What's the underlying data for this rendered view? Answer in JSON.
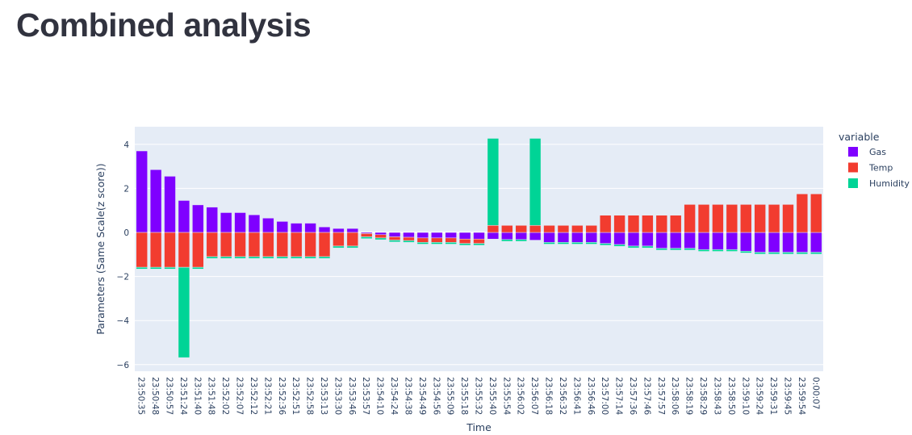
{
  "page": {
    "title": "Combined analysis"
  },
  "colors": {
    "Gas": "#7f00ff",
    "Temp": "#f23c2f",
    "Humidity": "#00d496"
  },
  "chart_data": {
    "type": "bar",
    "barmode": "relative",
    "xlabel": "Time",
    "ylabel": "Parameters (Same Scale(z score))",
    "ylim": [
      -6.3,
      4.8
    ],
    "yticks": [
      -6,
      -4,
      -2,
      0,
      2,
      4
    ],
    "legend_title": "variable",
    "legend_position": "right",
    "categories": [
      "23:50:35",
      "23:50:48",
      "23:50:57",
      "23:51:24",
      "23:51:40",
      "23:51:48",
      "23:52:02",
      "23:52:07",
      "23:52:12",
      "23:52:21",
      "23:52:36",
      "23:52:51",
      "23:52:58",
      "23:53:13",
      "23:53:30",
      "23:53:46",
      "23:53:57",
      "23:54:10",
      "23:54:24",
      "23:54:38",
      "23:54:49",
      "23:54:56",
      "23:55:09",
      "23:55:18",
      "23:55:32",
      "23:55:40",
      "23:55:54",
      "23:56:02",
      "23:56:07",
      "23:56:18",
      "23:56:32",
      "23:56:41",
      "23:56:46",
      "23:57:00",
      "23:57:14",
      "23:57:36",
      "23:57:46",
      "23:57:57",
      "23:58:06",
      "23:58:19",
      "23:58:29",
      "23:58:43",
      "23:58:50",
      "23:59:10",
      "23:59:24",
      "23:59:31",
      "23:59:45",
      "23:59:54",
      "0:00:07"
    ],
    "series": [
      {
        "name": "Gas",
        "values": [
          3.7,
          2.85,
          2.55,
          1.45,
          1.25,
          1.15,
          0.9,
          0.9,
          0.8,
          0.65,
          0.5,
          0.42,
          0.42,
          0.25,
          0.18,
          0.18,
          -0.05,
          -0.1,
          -0.2,
          -0.22,
          -0.25,
          -0.25,
          -0.25,
          -0.3,
          -0.3,
          -0.3,
          -0.32,
          -0.32,
          -0.35,
          -0.45,
          -0.45,
          -0.45,
          -0.45,
          -0.5,
          -0.55,
          -0.62,
          -0.62,
          -0.72,
          -0.72,
          -0.72,
          -0.78,
          -0.78,
          -0.78,
          -0.85,
          -0.9,
          -0.9,
          -0.9,
          -0.9,
          -0.9
        ]
      },
      {
        "name": "Temp",
        "values": [
          -1.58,
          -1.58,
          -1.58,
          -1.58,
          -1.58,
          -1.1,
          -1.1,
          -1.1,
          -1.1,
          -1.1,
          -1.1,
          -1.1,
          -1.1,
          -1.1,
          -0.62,
          -0.62,
          -0.15,
          -0.15,
          -0.15,
          -0.15,
          -0.2,
          -0.2,
          -0.2,
          -0.2,
          -0.2,
          0.32,
          0.32,
          0.32,
          0.32,
          0.32,
          0.32,
          0.32,
          0.32,
          0.78,
          0.78,
          0.78,
          0.78,
          0.78,
          0.78,
          1.27,
          1.27,
          1.27,
          1.27,
          1.27,
          1.27,
          1.27,
          1.27,
          1.75,
          1.75
        ]
      },
      {
        "name": "Humidity",
        "values": [
          -0.08,
          -0.08,
          -0.08,
          -4.1,
          -0.08,
          -0.08,
          -0.08,
          -0.08,
          -0.08,
          -0.08,
          -0.08,
          -0.08,
          -0.08,
          -0.08,
          -0.08,
          -0.08,
          -0.08,
          -0.08,
          -0.08,
          -0.08,
          -0.08,
          -0.08,
          -0.08,
          -0.08,
          -0.08,
          3.95,
          -0.08,
          -0.08,
          3.95,
          -0.08,
          -0.08,
          -0.08,
          -0.08,
          -0.08,
          -0.08,
          -0.08,
          -0.08,
          -0.08,
          -0.08,
          -0.08,
          -0.08,
          -0.08,
          -0.08,
          -0.08,
          -0.08,
          -0.08,
          -0.08,
          -0.08,
          -0.08
        ]
      }
    ]
  }
}
